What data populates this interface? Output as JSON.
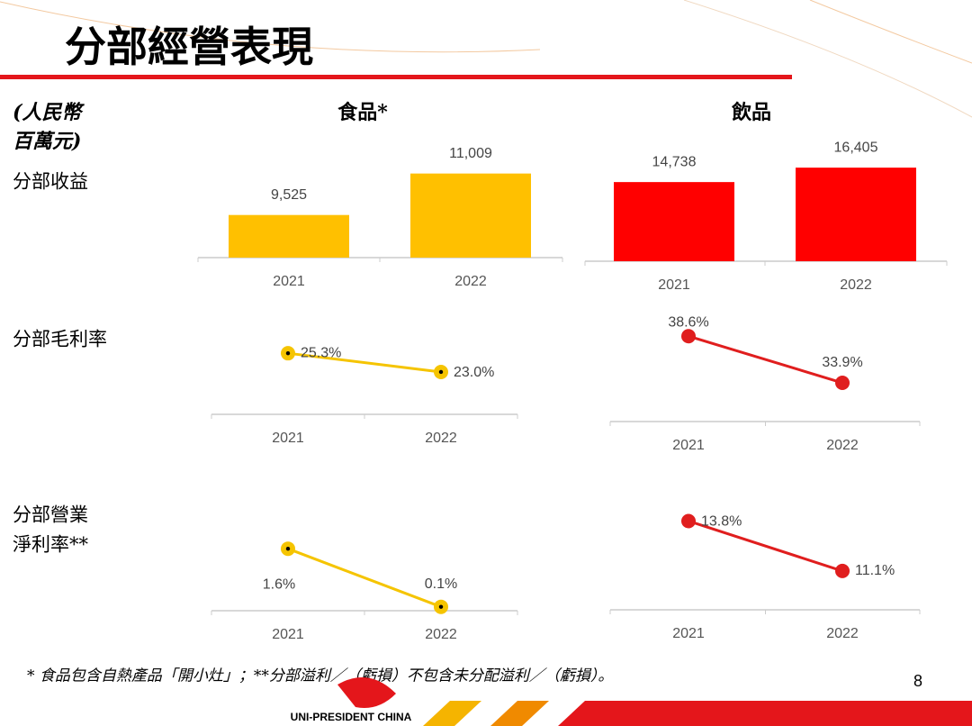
{
  "title": "分部經營表現",
  "unit": [
    "(人民幣",
    "百萬元)"
  ],
  "row_labels": [
    [
      "分部收益"
    ],
    [
      "分部毛利率"
    ],
    [
      "分部營業",
      "淨利率**"
    ]
  ],
  "footnote": "* 食品包含自熱產品「開小灶」；**分部溢利／（虧損）不包含未分配溢利／（虧損）。",
  "page_number": "8",
  "logo_text": "UNI-PRESIDENT CHINA",
  "chart_data": [
    {
      "type": "bar",
      "title": "食品*",
      "categories": [
        "2021",
        "2022"
      ],
      "values": [
        9525,
        11009
      ],
      "value_labels": [
        "9,525",
        "11,009"
      ],
      "color": "#FFC000",
      "ylim": [
        8000,
        11900
      ]
    },
    {
      "type": "bar",
      "title": "飲品",
      "categories": [
        "2021",
        "2022"
      ],
      "values": [
        14738,
        16405
      ],
      "value_labels": [
        "14,738",
        "16,405"
      ],
      "color": "#FF0000",
      "ylim": [
        5600,
        18600
      ]
    },
    {
      "type": "line",
      "categories": [
        "2021",
        "2022"
      ],
      "values": [
        25.3,
        23.0
      ],
      "value_labels": [
        "25.3%",
        "23.0%"
      ],
      "color": "#F5C400",
      "ylim": [
        17.8,
        27.2
      ]
    },
    {
      "type": "line",
      "categories": [
        "2021",
        "2022"
      ],
      "values": [
        38.6,
        33.9
      ],
      "value_labels": [
        "38.6%",
        "33.9%"
      ],
      "color": "#E01E1E",
      "ylim": [
        30,
        39.8
      ]
    },
    {
      "type": "line",
      "categories": [
        "2021",
        "2022"
      ],
      "values": [
        1.6,
        0.1
      ],
      "value_labels": [
        "1.6%",
        "0.1%"
      ],
      "color": "#F5C400",
      "ylim": [
        0,
        2.0
      ]
    },
    {
      "type": "line",
      "categories": [
        "2021",
        "2022"
      ],
      "values": [
        13.8,
        11.1
      ],
      "value_labels": [
        "13.8%",
        "11.1%"
      ],
      "color": "#E01E1E",
      "ylim": [
        9,
        14.7
      ]
    }
  ]
}
